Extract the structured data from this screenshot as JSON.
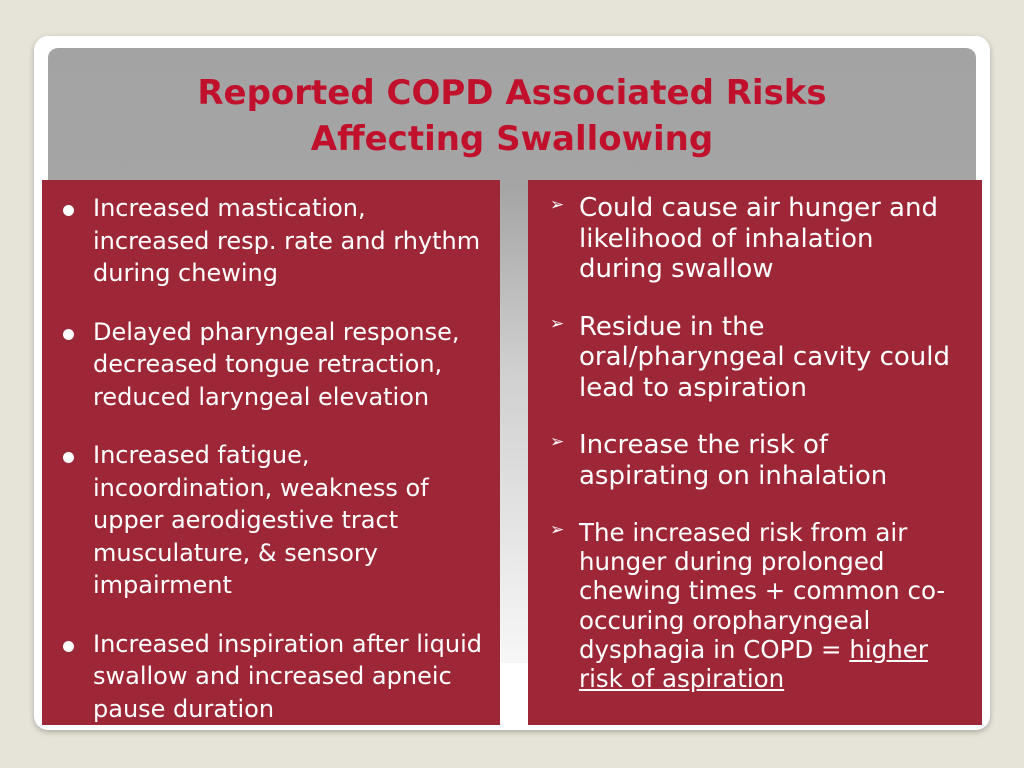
{
  "title": {
    "line1": "Reported COPD Associated Risks",
    "line2": "Affecting Swallowing"
  },
  "colors": {
    "title": "#c0102b",
    "panel": "#9e2737",
    "background": "#e6e3d8",
    "header_gray": "#a5a5a5"
  },
  "icons": {
    "left_bullet": "round-bullet-icon",
    "right_bullet": "arrowhead-bullet-icon"
  },
  "left_list": [
    "Increased mastication, increased resp. rate and rhythm during chewing",
    "Delayed pharyngeal response, decreased tongue retraction, reduced laryngeal elevation",
    "Increased fatigue, incoordination, weakness of upper aerodigestive tract musculature, & sensory impairment",
    "Increased inspiration after liquid swallow and increased apneic pause duration"
  ],
  "right_list": [
    "Could cause air hunger and likelihood of inhalation during swallow",
    "Residue in the oral/pharyngeal cavity could lead to aspiration",
    "Increase the risk of aspirating on inhalation",
    {
      "text": "The increased risk from air hunger during prolonged chewing times + common co-occuring oropharyngeal dysphagia in COPD = ",
      "emphasis": "higher risk of aspiration"
    }
  ]
}
